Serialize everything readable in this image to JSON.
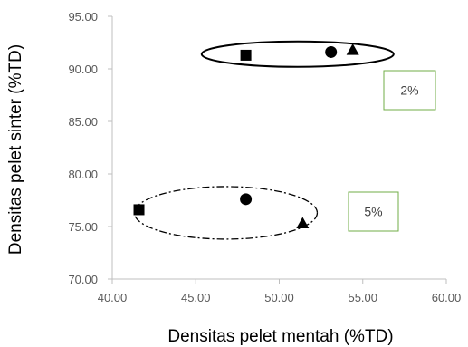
{
  "chart_data": {
    "type": "scatter",
    "title": "",
    "xlabel": "Densitas pelet mentah (%TD)",
    "ylabel": "Densitas pelet sinter (%TD)",
    "xlim": [
      40.0,
      60.0
    ],
    "ylim": [
      70.0,
      95.0
    ],
    "x_ticks": [
      "40.00",
      "45.00",
      "50.00",
      "55.00",
      "60.00"
    ],
    "y_ticks": [
      "70.00",
      "75.00",
      "80.00",
      "85.00",
      "90.00",
      "95.00"
    ],
    "grid": false,
    "legend": "none",
    "series": [
      {
        "marker": "square",
        "points": [
          {
            "x": 48.0,
            "y": 91.3
          },
          {
            "x": 41.6,
            "y": 76.6
          }
        ]
      },
      {
        "marker": "circle",
        "points": [
          {
            "x": 53.1,
            "y": 91.6
          },
          {
            "x": 48.0,
            "y": 77.6
          }
        ]
      },
      {
        "marker": "triangle",
        "points": [
          {
            "x": 54.4,
            "y": 91.8
          },
          {
            "x": 51.4,
            "y": 75.3
          }
        ]
      }
    ],
    "annotations": [
      {
        "text": "2%",
        "style": "solid-ellipse",
        "group_center": {
          "x": 51.1,
          "y": 91.4
        }
      },
      {
        "text": "5%",
        "style": "dashdot-ellipse",
        "group_center": {
          "x": 46.8,
          "y": 76.3
        }
      }
    ],
    "colors": {
      "marker": "#000000",
      "axis": "#bfbfbf",
      "annotation_box_border": "#70ad47",
      "tick_text": "#595959"
    }
  }
}
